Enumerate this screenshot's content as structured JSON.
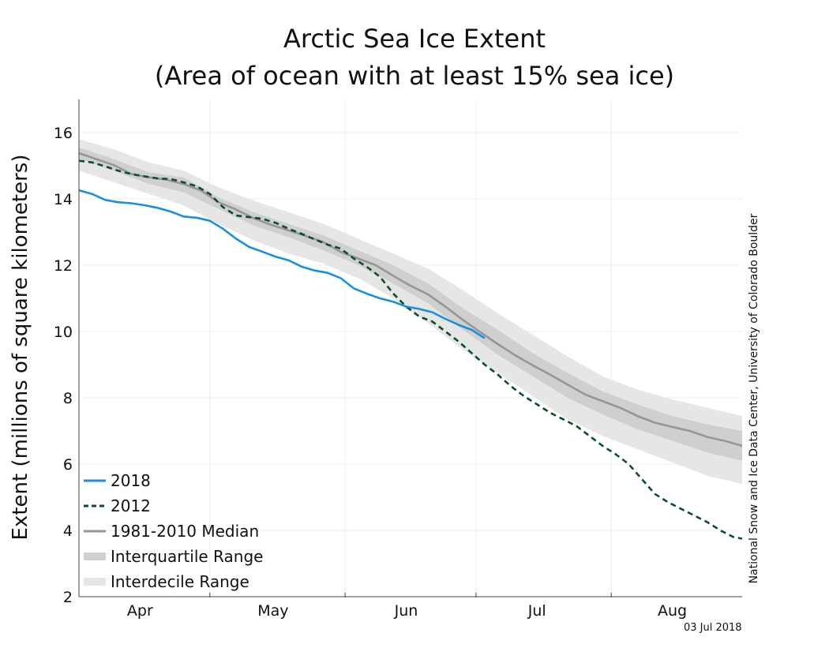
{
  "chart_data": {
    "type": "line",
    "title": "Arctic Sea Ice Extent",
    "subtitle": "(Area of ocean with at least 15% sea ice)",
    "ylabel": "Extent (millions of square kilometers)",
    "xlabel": "",
    "ylim": [
      2,
      17
    ],
    "yticks": [
      2,
      4,
      6,
      8,
      10,
      12,
      14,
      16
    ],
    "xlim": [
      0,
      152
    ],
    "months": [
      {
        "label": "Apr",
        "x": 14
      },
      {
        "label": "May",
        "x": 44.5
      },
      {
        "label": "Jun",
        "x": 75
      },
      {
        "label": "Jul",
        "x": 105
      },
      {
        "label": "Aug",
        "x": 136
      }
    ],
    "month_boundaries": [
      30,
      61,
      91,
      122
    ],
    "grid": true,
    "legend_position": "bottom-left",
    "credit": "National Snow and Ice Data Center, University of Colorado Boulder",
    "date_stamp": "03 Jul 2018",
    "colors": {
      "y2018": "#1a8fe0",
      "y2012": "#0b4f26",
      "median": "#969696",
      "interquartile": "#cfcfcf",
      "interdecile": "#e6e6e6"
    },
    "series": [
      {
        "name": "2018",
        "style": "solid",
        "x": [
          0,
          3,
          6,
          9,
          12,
          15,
          18,
          21,
          24,
          27,
          30,
          33,
          36,
          39,
          42,
          45,
          48,
          51,
          54,
          57,
          60,
          63,
          66,
          69,
          72,
          75,
          78,
          81,
          84,
          87,
          90,
          93
        ],
        "y": [
          14.26,
          14.15,
          13.97,
          13.9,
          13.87,
          13.81,
          13.73,
          13.62,
          13.47,
          13.43,
          13.34,
          13.1,
          12.8,
          12.55,
          12.41,
          12.26,
          12.15,
          11.96,
          11.84,
          11.77,
          11.61,
          11.3,
          11.14,
          11.0,
          10.9,
          10.75,
          10.68,
          10.58,
          10.38,
          10.2,
          10.05,
          9.8
        ]
      },
      {
        "name": "2012",
        "style": "dashed",
        "x": [
          0,
          3,
          6,
          9,
          12,
          15,
          18,
          21,
          24,
          27,
          30,
          33,
          36,
          39,
          42,
          45,
          48,
          51,
          54,
          57,
          60,
          63,
          66,
          69,
          72,
          75,
          78,
          81,
          84,
          87,
          90,
          93,
          96,
          99,
          102,
          105,
          108,
          111,
          114,
          117,
          120,
          123,
          126,
          129,
          132,
          135,
          138,
          141,
          144,
          147,
          150,
          152
        ],
        "y": [
          15.15,
          15.1,
          14.98,
          14.85,
          14.75,
          14.68,
          14.62,
          14.6,
          14.5,
          14.38,
          14.15,
          13.75,
          13.5,
          13.45,
          13.4,
          13.28,
          13.1,
          12.95,
          12.78,
          12.62,
          12.5,
          12.2,
          11.95,
          11.65,
          11.15,
          10.75,
          10.45,
          10.3,
          10.0,
          9.7,
          9.35,
          9.0,
          8.7,
          8.35,
          8.05,
          7.8,
          7.55,
          7.35,
          7.15,
          6.85,
          6.55,
          6.3,
          6.0,
          5.55,
          5.1,
          4.85,
          4.65,
          4.45,
          4.25,
          4.0,
          3.8,
          3.75
        ]
      },
      {
        "name": "1981-2010 Median",
        "style": "solid",
        "x": [
          0,
          4,
          8,
          12,
          16,
          20,
          24,
          28,
          32,
          36,
          40,
          44,
          48,
          52,
          56,
          60,
          64,
          68,
          72,
          76,
          80,
          84,
          88,
          92,
          96,
          100,
          104,
          108,
          112,
          116,
          120,
          124,
          128,
          132,
          136,
          140,
          144,
          148,
          152
        ],
        "y": [
          15.38,
          15.2,
          15.02,
          14.75,
          14.65,
          14.58,
          14.45,
          14.25,
          13.9,
          13.68,
          13.42,
          13.22,
          13.05,
          12.88,
          12.7,
          12.4,
          12.2,
          12.0,
          11.68,
          11.38,
          11.12,
          10.75,
          10.35,
          9.98,
          9.62,
          9.28,
          8.98,
          8.7,
          8.4,
          8.1,
          7.9,
          7.7,
          7.45,
          7.25,
          7.12,
          7.0,
          6.82,
          6.7,
          6.55
        ]
      }
    ],
    "bands": [
      {
        "name": "Interquartile Range",
        "x": [
          0,
          8,
          16,
          24,
          32,
          40,
          48,
          56,
          64,
          72,
          80,
          88,
          96,
          104,
          112,
          120,
          128,
          136,
          144,
          152
        ],
        "lower": [
          15.2,
          14.85,
          14.45,
          14.2,
          13.7,
          13.2,
          12.85,
          12.45,
          12.0,
          11.45,
          10.85,
          10.05,
          9.3,
          8.65,
          8.0,
          7.5,
          7.05,
          6.7,
          6.35,
          6.1
        ],
        "upper": [
          15.55,
          15.2,
          14.8,
          14.65,
          14.05,
          13.6,
          13.25,
          12.9,
          12.45,
          12.0,
          11.45,
          10.7,
          10.05,
          9.35,
          8.75,
          8.2,
          7.8,
          7.45,
          7.2,
          7.0
        ]
      },
      {
        "name": "Interdecile Range",
        "x": [
          0,
          8,
          16,
          24,
          32,
          40,
          48,
          56,
          64,
          72,
          80,
          88,
          96,
          104,
          112,
          120,
          128,
          136,
          144,
          152
        ],
        "lower": [
          14.85,
          14.5,
          14.15,
          13.8,
          13.25,
          12.75,
          12.35,
          12.05,
          11.6,
          11.0,
          10.25,
          9.45,
          8.75,
          8.05,
          7.35,
          6.85,
          6.45,
          6.05,
          5.65,
          5.4
        ],
        "upper": [
          15.8,
          15.5,
          15.1,
          14.85,
          14.35,
          13.95,
          13.6,
          13.25,
          12.8,
          12.35,
          11.9,
          11.25,
          10.55,
          9.9,
          9.25,
          8.65,
          8.25,
          7.95,
          7.7,
          7.45
        ]
      }
    ],
    "legend": [
      {
        "label": "2018",
        "kind": "line-2018"
      },
      {
        "label": "2012",
        "kind": "line-2012"
      },
      {
        "label": "1981-2010 Median",
        "kind": "line-median"
      },
      {
        "label": "Interquartile Range",
        "kind": "band-iqr"
      },
      {
        "label": "Interdecile Range",
        "kind": "band-idr"
      }
    ]
  }
}
